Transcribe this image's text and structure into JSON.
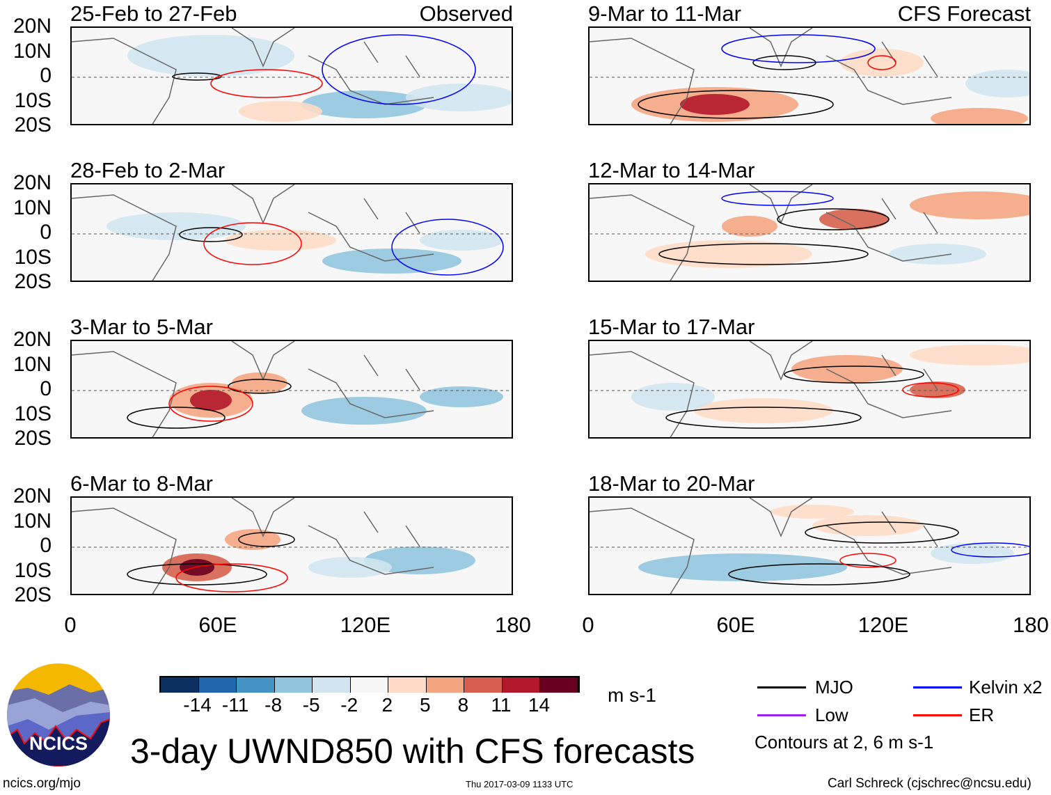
{
  "panels_left": [
    {
      "title": "25-Feb to 27-Feb",
      "tag": "Observed"
    },
    {
      "title": "28-Feb to 2-Mar",
      "tag": ""
    },
    {
      "title": "3-Mar to 5-Mar",
      "tag": ""
    },
    {
      "title": "6-Mar to 8-Mar",
      "tag": ""
    }
  ],
  "panels_right": [
    {
      "title": "9-Mar to 11-Mar",
      "tag": "CFS Forecast"
    },
    {
      "title": "12-Mar to 14-Mar",
      "tag": ""
    },
    {
      "title": "15-Mar to 17-Mar",
      "tag": ""
    },
    {
      "title": "18-Mar to 20-Mar",
      "tag": ""
    }
  ],
  "y_ticks": [
    "20N",
    "10N",
    "0",
    "10S",
    "20S"
  ],
  "x_ticks": [
    "0",
    "60E",
    "120E",
    "180"
  ],
  "colorbar": {
    "labels": [
      "-14",
      "-11",
      "-8",
      "-5",
      "-2",
      "2",
      "5",
      "8",
      "11",
      "14"
    ],
    "colors": [
      "#0b2f5e",
      "#2166ac",
      "#4393c3",
      "#92c5de",
      "#d1e5f0",
      "#f7f7f7",
      "#fddbc7",
      "#f4a582",
      "#d6604d",
      "#b2182b",
      "#67001f"
    ],
    "units": "m s-1"
  },
  "legend": {
    "items": [
      {
        "label": "MJO",
        "color": "#000000"
      },
      {
        "label": "Kelvin x2",
        "color": "#0000ff"
      },
      {
        "label": "Low",
        "color": "#a020f0"
      },
      {
        "label": "ER",
        "color": "#ff0000"
      }
    ],
    "note": "Contours at 2, 6 m s-1"
  },
  "title": "3-day UWND850 with CFS forecasts",
  "logo_text": "NCICS",
  "footer": {
    "url": "ncics.org/mjo",
    "timestamp": "Thu 2017-03-09 1133 UTC",
    "author": "Carl Schreck (cjschrec@ncsu.edu)"
  }
}
